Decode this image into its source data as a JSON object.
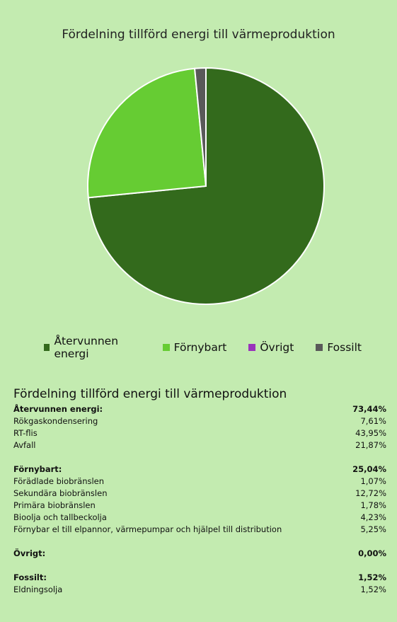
{
  "chart_data": {
    "type": "pie",
    "title": "Fördelning tillförd energi till värmeproduktion",
    "categories": [
      "Återvunnen energi",
      "Förnybart",
      "Övrigt",
      "Fossilt"
    ],
    "values": [
      73.44,
      25.04,
      0.0,
      1.52
    ],
    "unit": "%",
    "colors": [
      "#336a1c",
      "#66cc33",
      "#9933bb",
      "#595959"
    ],
    "legend_position": "bottom"
  },
  "table": {
    "title": "Fördelning tillförd energi till värmeproduktion",
    "groups": [
      {
        "label": "Återvunnen energi:",
        "total": "73,44%",
        "rows": [
          {
            "label": "Rökgaskondensering",
            "value": "7,61%"
          },
          {
            "label": "RT-flis",
            "value": "43,95%"
          },
          {
            "label": "Avfall",
            "value": "21,87%"
          }
        ]
      },
      {
        "label": "Förnybart:",
        "total": "25,04%",
        "rows": [
          {
            "label": "Förädlade biobränslen",
            "value": "1,07%"
          },
          {
            "label": "Sekundära biobränslen",
            "value": "12,72%"
          },
          {
            "label": "Primära biobränslen",
            "value": "1,78%"
          },
          {
            "label": "Bioolja och tallbeckolja",
            "value": "4,23%"
          },
          {
            "label": "Förnybar el till elpannor, värmepumpar och hjälpel till distribution",
            "value": "5,25%"
          }
        ]
      },
      {
        "label": "Övrigt:",
        "total": "0,00%",
        "rows": []
      },
      {
        "label": "Fossilt:",
        "total": "1,52%",
        "rows": [
          {
            "label": "Eldningsolja",
            "value": "1,52%"
          }
        ]
      }
    ]
  }
}
